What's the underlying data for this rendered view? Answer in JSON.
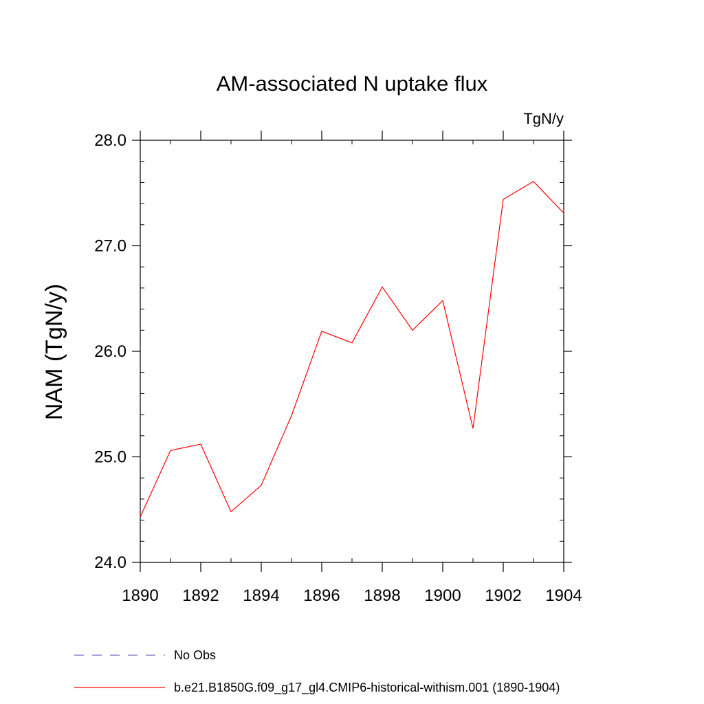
{
  "chart_data": {
    "type": "line",
    "title": "AM-associated N uptake flux",
    "units_label": "TgN/y",
    "ylabel": "NAM  (TgN/y)",
    "xlabel": "",
    "xlim": [
      1890,
      1904
    ],
    "ylim": [
      24.0,
      28.0
    ],
    "x_ticks": [
      1890,
      1892,
      1894,
      1896,
      1898,
      1900,
      1902,
      1904
    ],
    "x_tick_labels": [
      "1890",
      "1892",
      "1894",
      "1896",
      "1898",
      "1900",
      "1902",
      "1904"
    ],
    "y_ticks": [
      24.0,
      25.0,
      26.0,
      27.0,
      28.0
    ],
    "y_tick_labels": [
      "24.0",
      "25.0",
      "26.0",
      "27.0",
      "28.0"
    ],
    "y_minor_step": 0.2,
    "x_minor_step": 1,
    "grid": false,
    "legend_position": "bottom-left",
    "series": [
      {
        "name": "b.e21.B1850G.f09_g17_gl4.CMIP6-historical-withism.001 (1890-1904)",
        "color": "#ff0000",
        "dash": "solid",
        "x": [
          1890,
          1891,
          1892,
          1893,
          1894,
          1895,
          1896,
          1897,
          1898,
          1899,
          1900,
          1901,
          1902,
          1903,
          1904
        ],
        "y": [
          24.43,
          25.06,
          25.12,
          24.48,
          24.73,
          25.39,
          26.19,
          26.08,
          26.61,
          26.2,
          26.48,
          25.27,
          27.44,
          27.61,
          27.31
        ]
      }
    ],
    "legend": [
      {
        "label": "No Obs",
        "color": "#7b68c8",
        "dash": "dashed"
      },
      {
        "label": "b.e21.B1850G.f09_g17_gl4.CMIP6-historical-withism.001 (1890-1904)",
        "color": "#ff0000",
        "dash": "solid"
      }
    ]
  }
}
